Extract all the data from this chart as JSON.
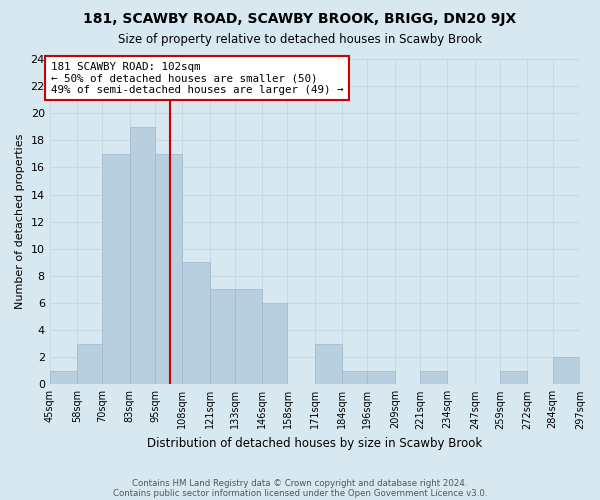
{
  "title": "181, SCAWBY ROAD, SCAWBY BROOK, BRIGG, DN20 9JX",
  "subtitle": "Size of property relative to detached houses in Scawby Brook",
  "xlabel": "Distribution of detached houses by size in Scawby Brook",
  "ylabel": "Number of detached properties",
  "bin_edges": [
    45,
    58,
    70,
    83,
    95,
    108,
    121,
    133,
    146,
    158,
    171,
    184,
    196,
    209,
    221,
    234,
    247,
    259,
    272,
    284,
    297
  ],
  "bin_labels": [
    "45sqm",
    "58sqm",
    "70sqm",
    "83sqm",
    "95sqm",
    "108sqm",
    "121sqm",
    "133sqm",
    "146sqm",
    "158sqm",
    "171sqm",
    "184sqm",
    "196sqm",
    "209sqm",
    "221sqm",
    "234sqm",
    "247sqm",
    "259sqm",
    "272sqm",
    "284sqm",
    "297sqm"
  ],
  "counts": [
    1,
    3,
    17,
    19,
    17,
    9,
    7,
    7,
    6,
    0,
    3,
    1,
    1,
    0,
    1,
    0,
    0,
    1,
    0,
    2
  ],
  "bar_color": "#b8cfe0",
  "bar_edge_color": "#a0b8cc",
  "grid_color": "#c8d8e8",
  "bg_color": "#d8e8f0",
  "property_line_x": 102,
  "property_line_color": "#cc0000",
  "annotation_text": "181 SCAWBY ROAD: 102sqm\n← 50% of detached houses are smaller (50)\n49% of semi-detached houses are larger (49) →",
  "annotation_box_color": "#ffffff",
  "annotation_box_edge_color": "#cc0000",
  "ylim": [
    0,
    24
  ],
  "yticks": [
    0,
    2,
    4,
    6,
    8,
    10,
    12,
    14,
    16,
    18,
    20,
    22,
    24
  ],
  "footer_line1": "Contains HM Land Registry data © Crown copyright and database right 2024.",
  "footer_line2": "Contains public sector information licensed under the Open Government Licence v3.0."
}
